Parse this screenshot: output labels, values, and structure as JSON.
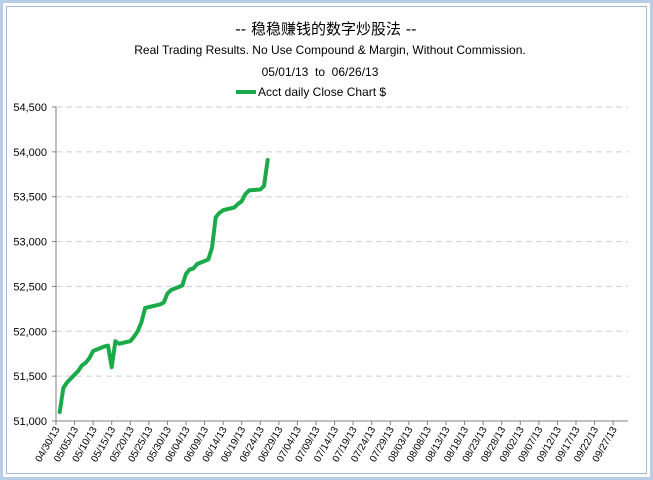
{
  "chart_data": {
    "type": "line",
    "title": "--   稳稳赚钱的数字炒股法   --",
    "subtitle": "Real Trading Results. No Use Compound & Margin, Without Commission.",
    "date_range": "05/01/13  to  06/26/13",
    "legend_placement": "top-center",
    "grid": true,
    "ylim": [
      51000,
      54500
    ],
    "y_ticks": [
      "51,000",
      "51,500",
      "52,000",
      "52,500",
      "53,000",
      "53,500",
      "54,000",
      "54,500"
    ],
    "y_tick_values": [
      51000,
      51500,
      52000,
      52500,
      53000,
      53500,
      54000,
      54500
    ],
    "x_ticks": [
      "04/30/13",
      "05/05/13",
      "05/10/13",
      "05/15/13",
      "05/20/13",
      "05/25/13",
      "05/30/13",
      "06/04/13",
      "06/09/13",
      "06/14/13",
      "06/19/13",
      "06/24/13",
      "06/29/13",
      "07/04/13",
      "07/09/13",
      "07/14/13",
      "07/19/13",
      "07/24/13",
      "07/29/13",
      "08/03/13",
      "08/08/13",
      "08/13/13",
      "08/18/13",
      "08/23/13",
      "08/28/13",
      "09/02/13",
      "09/07/13",
      "09/12/13",
      "09/17/13",
      "09/22/13",
      "09/27/13"
    ],
    "xlim": [
      "04/30/13",
      "10/01/13"
    ],
    "series": [
      {
        "name": "Acct daily Close Chart $",
        "color": "#1aaa4a",
        "x": [
          "05/01/13",
          "05/02/13",
          "05/03/13",
          "05/06/13",
          "05/07/13",
          "05/08/13",
          "05/09/13",
          "05/10/13",
          "05/13/13",
          "05/14/13",
          "05/15/13",
          "05/16/13",
          "05/17/13",
          "05/20/13",
          "05/21/13",
          "05/22/13",
          "05/23/13",
          "05/24/13",
          "05/28/13",
          "05/29/13",
          "05/30/13",
          "05/31/13",
          "06/03/13",
          "06/04/13",
          "06/05/13",
          "06/06/13",
          "06/07/13",
          "06/10/13",
          "06/11/13",
          "06/12/13",
          "06/13/13",
          "06/14/13",
          "06/17/13",
          "06/18/13",
          "06/19/13",
          "06/20/13",
          "06/21/13",
          "06/24/13",
          "06/25/13",
          "06/26/13"
        ],
        "values": [
          51100,
          51370,
          51430,
          51560,
          51620,
          51650,
          51700,
          51780,
          51830,
          51840,
          51600,
          51890,
          51860,
          51890,
          51940,
          52000,
          52100,
          52260,
          52300,
          52320,
          52420,
          52460,
          52510,
          52640,
          52690,
          52700,
          52750,
          52800,
          52930,
          53270,
          53320,
          53350,
          53380,
          53420,
          53450,
          53530,
          53570,
          53580,
          53620,
          53910
        ]
      }
    ]
  }
}
